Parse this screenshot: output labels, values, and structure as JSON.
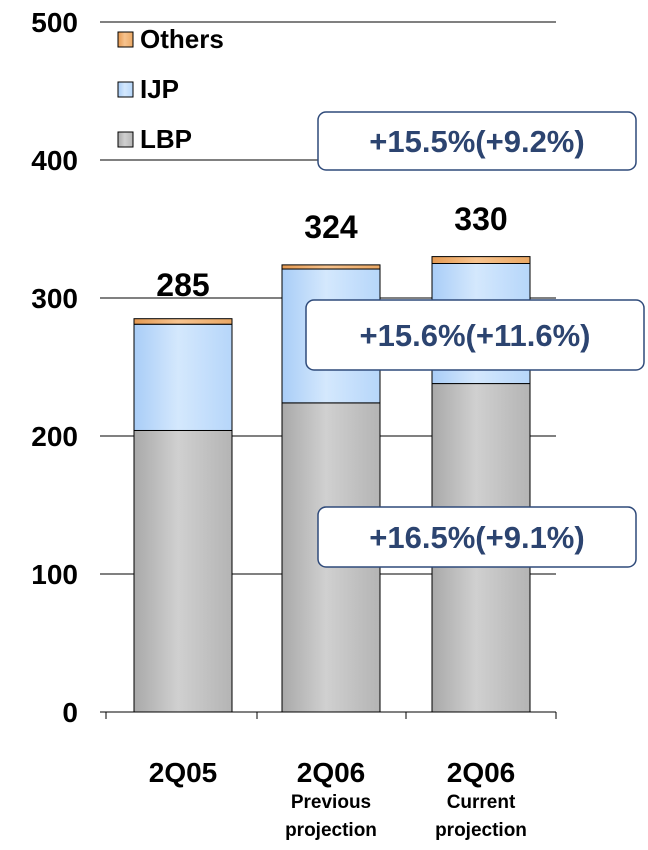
{
  "chart_data": {
    "type": "bar",
    "stacked": true,
    "categories": [
      {
        "main": "2Q05",
        "sub": []
      },
      {
        "main": "2Q06",
        "sub": [
          "Previous",
          "projection"
        ]
      },
      {
        "main": "2Q06",
        "sub": [
          "Current",
          "projection"
        ]
      }
    ],
    "series": [
      {
        "name": "LBP",
        "values": [
          204,
          224,
          238
        ]
      },
      {
        "name": "IJP",
        "values": [
          77,
          97,
          87
        ]
      },
      {
        "name": "Others",
        "values": [
          4,
          3,
          5
        ]
      }
    ],
    "totals": [
      "285",
      "324",
      "330"
    ],
    "y_ticks": [
      "0",
      "100",
      "200",
      "300",
      "400",
      "500"
    ],
    "ylim": [
      0,
      500
    ],
    "grid": true,
    "legend_position": "top-left",
    "annotations": [
      {
        "text": "+15.5%(+9.2%)",
        "refers_to": "Others"
      },
      {
        "text": "+15.6%(+11.6%)",
        "refers_to": "IJP"
      },
      {
        "text": "+16.5%(+9.1%)",
        "refers_to": "LBP"
      }
    ],
    "colors": {
      "LBP": "#c0c0c0",
      "IJP": "#bfdcfb",
      "Others": "#f0ad6a",
      "annotation_border": "#2f4a7a",
      "annotation_text": "#2c4470"
    }
  }
}
